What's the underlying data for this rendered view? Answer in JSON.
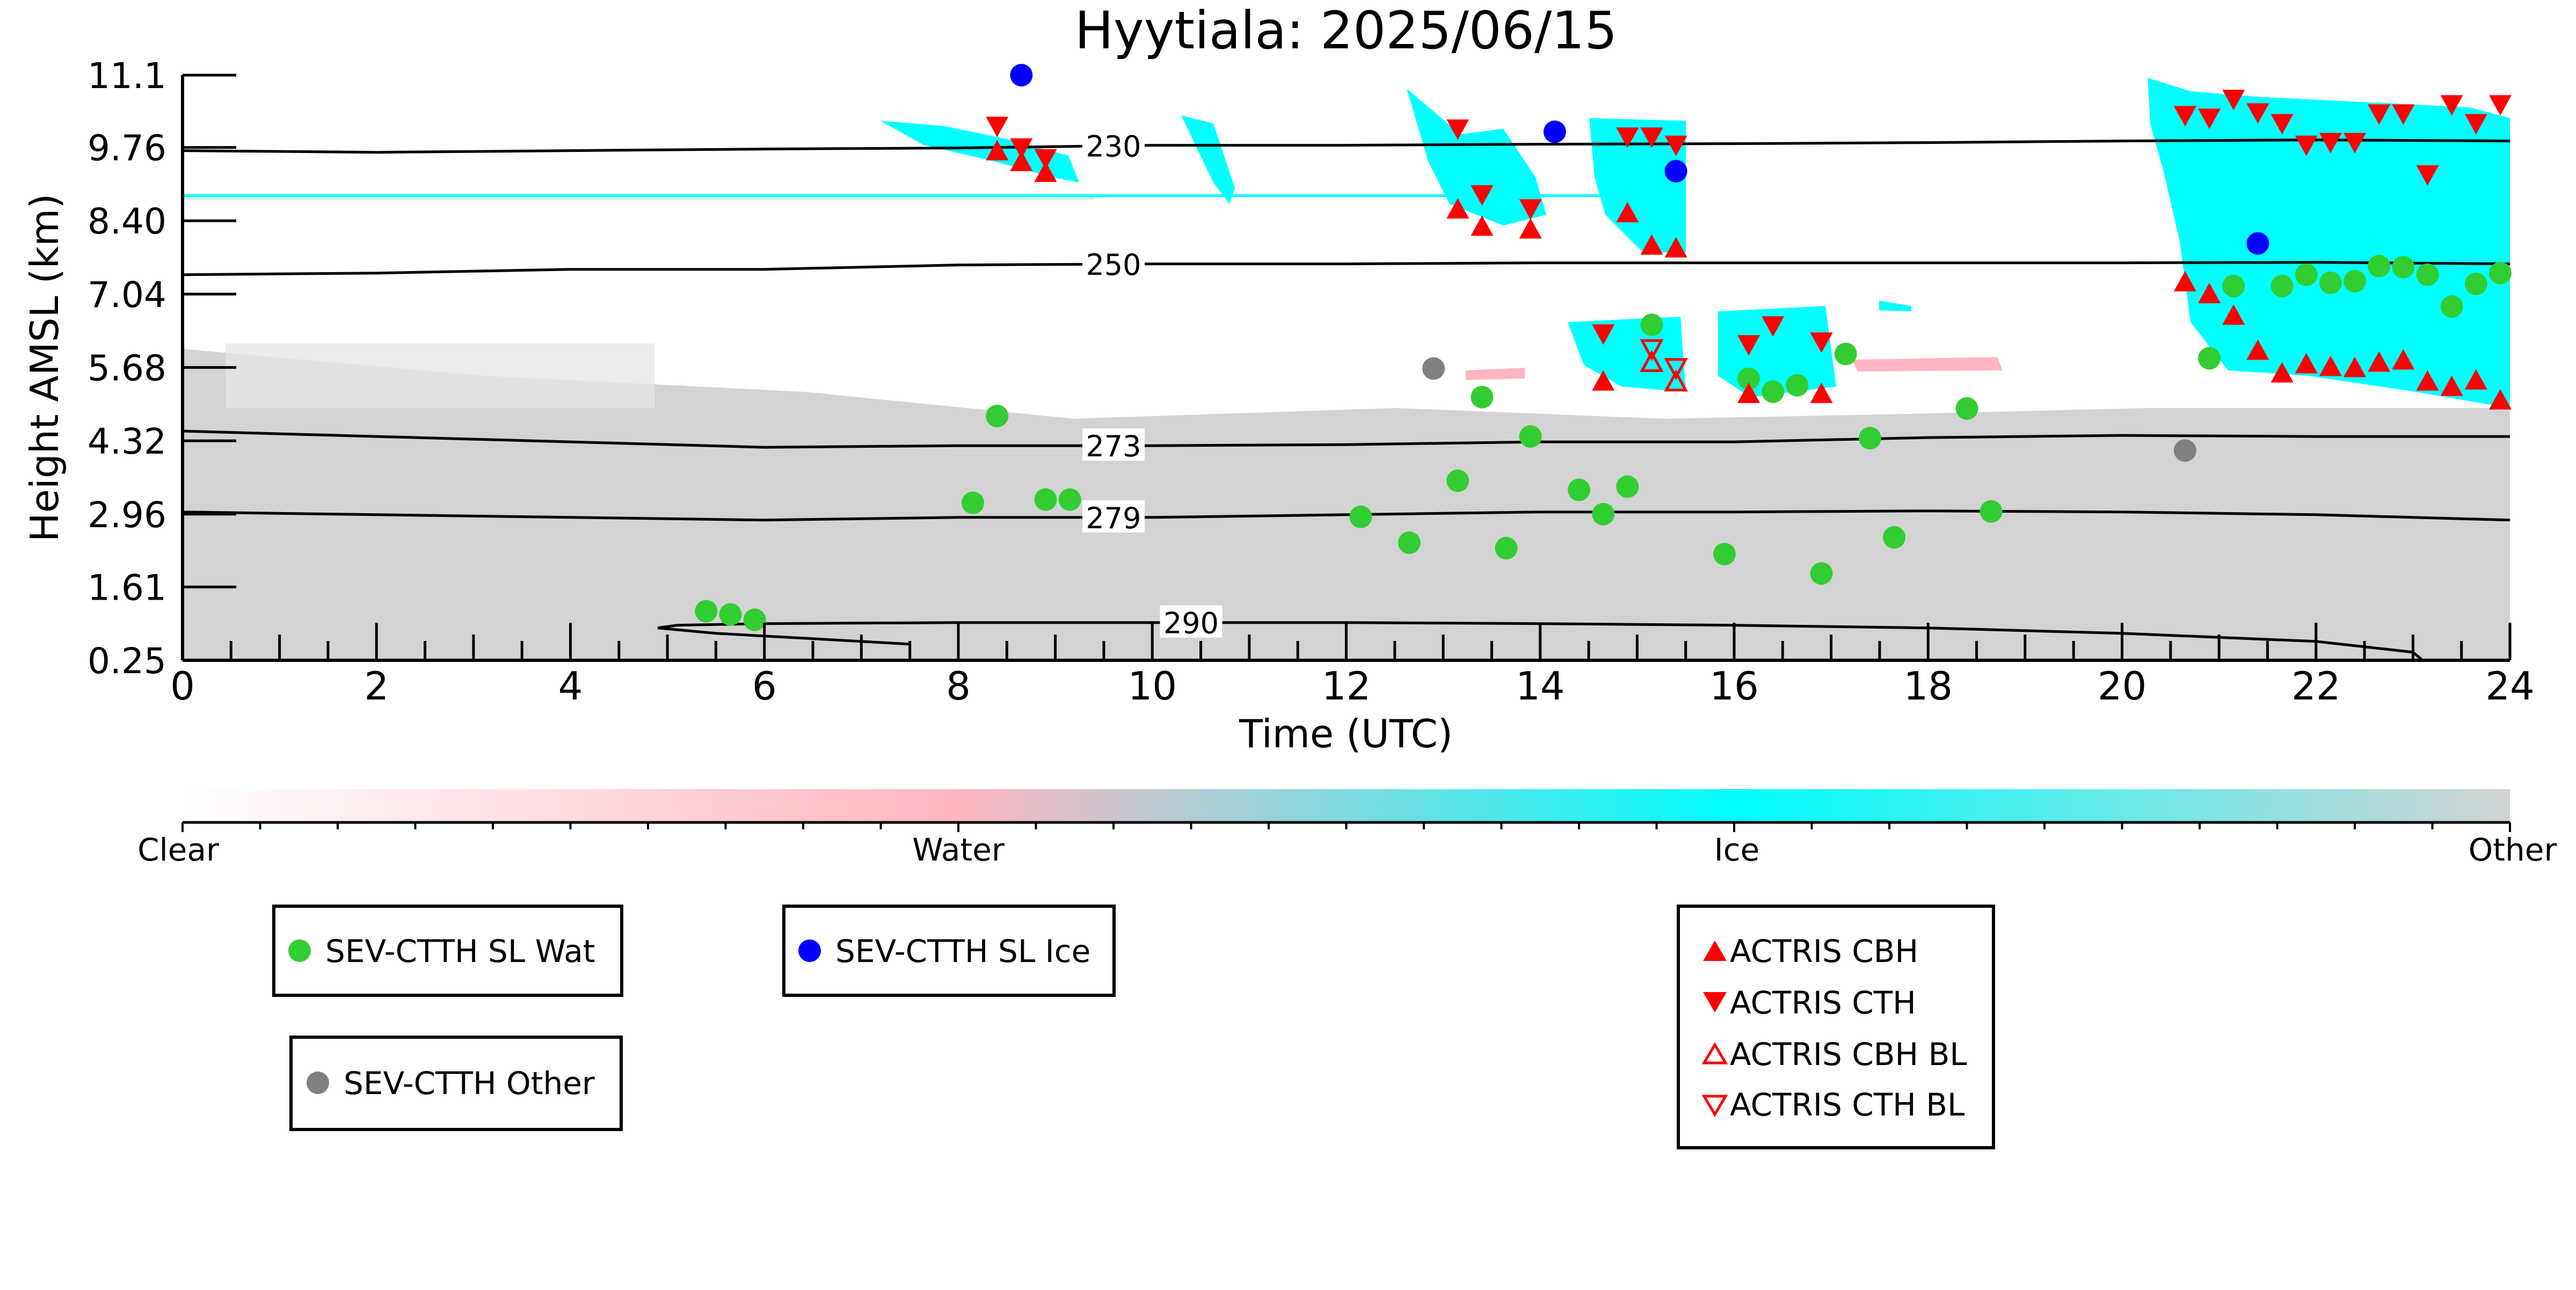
{
  "chart_data": {
    "type": "scatter",
    "title": "Hyytiala: 2025/06/15",
    "xlabel": "Time (UTC)",
    "ylabel": "Height AMSL (km)",
    "xlim": [
      0,
      24
    ],
    "ylim": [
      0.25,
      11.1
    ],
    "x_ticks": [
      0,
      2,
      4,
      6,
      8,
      10,
      12,
      14,
      16,
      18,
      20,
      22,
      24
    ],
    "y_ticks": [
      0.25,
      1.61,
      2.96,
      4.32,
      5.68,
      7.04,
      8.4,
      9.76,
      11.1
    ],
    "y_tick_labels": [
      "0.25",
      "1.61",
      "2.96",
      "4.32",
      "5.68",
      "7.04",
      "8.40",
      "9.76",
      "11.1"
    ],
    "grid": false,
    "colorbar": {
      "labels": [
        "Clear",
        "Water",
        "Ice",
        "Other"
      ],
      "colors": [
        "#ffffff",
        "#ffb6c1",
        "#00ffff",
        "#d3d3d3"
      ]
    },
    "contours": [
      {
        "label": "230",
        "label_x": 9.6,
        "points": [
          [
            0,
            9.7
          ],
          [
            2,
            9.67
          ],
          [
            4,
            9.7
          ],
          [
            6,
            9.73
          ],
          [
            8,
            9.75
          ],
          [
            10,
            9.8
          ],
          [
            12,
            9.8
          ],
          [
            14,
            9.82
          ],
          [
            16,
            9.83
          ],
          [
            18,
            9.85
          ],
          [
            20,
            9.88
          ],
          [
            22,
            9.9
          ],
          [
            24,
            9.88
          ]
        ]
      },
      {
        "label": "250",
        "label_x": 9.6,
        "points": [
          [
            0,
            7.4
          ],
          [
            2,
            7.43
          ],
          [
            4,
            7.5
          ],
          [
            6,
            7.5
          ],
          [
            8,
            7.58
          ],
          [
            10,
            7.6
          ],
          [
            12,
            7.6
          ],
          [
            14,
            7.62
          ],
          [
            16,
            7.62
          ],
          [
            18,
            7.62
          ],
          [
            20,
            7.62
          ],
          [
            22,
            7.63
          ],
          [
            24,
            7.6
          ]
        ]
      },
      {
        "label": "273",
        "label_x": 9.6,
        "points": [
          [
            0,
            4.5
          ],
          [
            2,
            4.4
          ],
          [
            4,
            4.3
          ],
          [
            6,
            4.2
          ],
          [
            8,
            4.23
          ],
          [
            10,
            4.23
          ],
          [
            12,
            4.25
          ],
          [
            14,
            4.3
          ],
          [
            16,
            4.3
          ],
          [
            18,
            4.38
          ],
          [
            20,
            4.42
          ],
          [
            22,
            4.4
          ],
          [
            24,
            4.4
          ]
        ]
      },
      {
        "label": "279",
        "label_x": 9.6,
        "points": [
          [
            0,
            3.0
          ],
          [
            2,
            2.95
          ],
          [
            4,
            2.9
          ],
          [
            6,
            2.85
          ],
          [
            8,
            2.9
          ],
          [
            10,
            2.9
          ],
          [
            12,
            2.95
          ],
          [
            14,
            3.0
          ],
          [
            16,
            3.0
          ],
          [
            18,
            3.02
          ],
          [
            20,
            3.0
          ],
          [
            22,
            2.95
          ],
          [
            24,
            2.85
          ]
        ]
      },
      {
        "label": "290",
        "label_x": 10.4,
        "points": [
          [
            7.5,
            0.55
          ],
          [
            6.5,
            0.65
          ],
          [
            5.5,
            0.75
          ],
          [
            4.9,
            0.85
          ],
          [
            5.1,
            0.9
          ],
          [
            6,
            0.93
          ],
          [
            8,
            0.95
          ],
          [
            10,
            0.95
          ],
          [
            12,
            0.95
          ],
          [
            14,
            0.93
          ],
          [
            16,
            0.9
          ],
          [
            18,
            0.85
          ],
          [
            20,
            0.75
          ],
          [
            22,
            0.6
          ],
          [
            23,
            0.4
          ],
          [
            23.1,
            0.25
          ]
        ]
      }
    ],
    "series": [
      {
        "name": "SEV-CTTH SL Wat",
        "marker": "circle",
        "color": "#32cd32",
        "points": [
          [
            5.4,
            1.16
          ],
          [
            5.65,
            1.1
          ],
          [
            5.9,
            1.0
          ],
          [
            8.15,
            3.17
          ],
          [
            8.4,
            4.78
          ],
          [
            8.9,
            3.23
          ],
          [
            9.15,
            3.23
          ],
          [
            12.15,
            2.91
          ],
          [
            12.65,
            2.43
          ],
          [
            13.15,
            3.58
          ],
          [
            13.4,
            5.13
          ],
          [
            13.65,
            2.33
          ],
          [
            13.9,
            4.4
          ],
          [
            14.4,
            3.41
          ],
          [
            14.65,
            2.96
          ],
          [
            14.9,
            3.47
          ],
          [
            15.15,
            6.47
          ],
          [
            15.9,
            2.22
          ],
          [
            16.15,
            5.47
          ],
          [
            16.4,
            5.23
          ],
          [
            16.65,
            5.35
          ],
          [
            16.9,
            1.86
          ],
          [
            17.15,
            5.93
          ],
          [
            17.4,
            4.37
          ],
          [
            17.65,
            2.53
          ],
          [
            18.4,
            4.92
          ],
          [
            18.65,
            3.01
          ],
          [
            20.9,
            5.85
          ],
          [
            21.15,
            7.19
          ],
          [
            21.65,
            7.19
          ],
          [
            21.9,
            7.4
          ],
          [
            22.15,
            7.25
          ],
          [
            22.4,
            7.28
          ],
          [
            22.65,
            7.56
          ],
          [
            22.9,
            7.54
          ],
          [
            23.15,
            7.4
          ],
          [
            23.4,
            6.81
          ],
          [
            23.65,
            7.23
          ],
          [
            23.9,
            7.43
          ]
        ]
      },
      {
        "name": "SEV-CTTH SL Ice",
        "marker": "circle",
        "color": "#0000ff",
        "points": [
          [
            8.65,
            11.1
          ],
          [
            14.15,
            10.05
          ],
          [
            15.4,
            9.32
          ],
          [
            21.4,
            7.98
          ]
        ]
      },
      {
        "name": "SEV-CTTH Other",
        "marker": "circle",
        "color": "#808080",
        "points": [
          [
            12.9,
            5.66
          ],
          [
            20.65,
            4.14
          ]
        ]
      },
      {
        "name": "ACTRIS CBH",
        "marker": "triangle-up",
        "color": "#ff0000",
        "points": [
          [
            8.4,
            9.7
          ],
          [
            8.65,
            9.5
          ],
          [
            8.9,
            9.3
          ],
          [
            13.15,
            8.62
          ],
          [
            13.4,
            8.3
          ],
          [
            13.9,
            8.25
          ],
          [
            14.65,
            5.43
          ],
          [
            14.9,
            8.55
          ],
          [
            15.15,
            7.95
          ],
          [
            15.4,
            7.9
          ],
          [
            16.15,
            5.2
          ],
          [
            16.9,
            5.2
          ],
          [
            20.65,
            7.27
          ],
          [
            20.9,
            7.05
          ],
          [
            21.15,
            6.65
          ],
          [
            21.4,
            6.0
          ],
          [
            21.65,
            5.58
          ],
          [
            21.9,
            5.75
          ],
          [
            22.15,
            5.7
          ],
          [
            22.4,
            5.68
          ],
          [
            22.65,
            5.78
          ],
          [
            22.9,
            5.82
          ],
          [
            23.15,
            5.43
          ],
          [
            23.4,
            5.33
          ],
          [
            23.65,
            5.45
          ],
          [
            23.9,
            5.08
          ]
        ]
      },
      {
        "name": "ACTRIS CTH",
        "marker": "triangle-down",
        "color": "#ff0000",
        "points": [
          [
            8.4,
            10.15
          ],
          [
            8.65,
            9.75
          ],
          [
            8.9,
            9.55
          ],
          [
            13.15,
            10.1
          ],
          [
            13.4,
            8.88
          ],
          [
            13.9,
            8.62
          ],
          [
            14.65,
            6.3
          ],
          [
            14.9,
            9.95
          ],
          [
            15.15,
            9.95
          ],
          [
            15.4,
            9.8
          ],
          [
            16.15,
            6.1
          ],
          [
            16.4,
            6.45
          ],
          [
            16.9,
            6.15
          ],
          [
            20.65,
            10.35
          ],
          [
            20.9,
            10.3
          ],
          [
            21.15,
            10.65
          ],
          [
            21.4,
            10.4
          ],
          [
            21.65,
            10.2
          ],
          [
            21.9,
            9.8
          ],
          [
            22.15,
            9.85
          ],
          [
            22.4,
            9.85
          ],
          [
            22.65,
            10.38
          ],
          [
            22.9,
            10.38
          ],
          [
            23.15,
            9.25
          ],
          [
            23.4,
            10.55
          ],
          [
            23.65,
            10.2
          ],
          [
            23.9,
            10.55
          ]
        ]
      },
      {
        "name": "ACTRIS CBH BL",
        "marker": "triangle-up-open",
        "color": "#ff0000",
        "points": [
          [
            15.15,
            5.78
          ],
          [
            15.4,
            5.42
          ]
        ]
      },
      {
        "name": "ACTRIS CTH BL",
        "marker": "triangle-down-open",
        "color": "#ff0000",
        "points": [
          [
            15.15,
            6.02
          ],
          [
            15.4,
            5.67
          ]
        ]
      }
    ]
  }
}
